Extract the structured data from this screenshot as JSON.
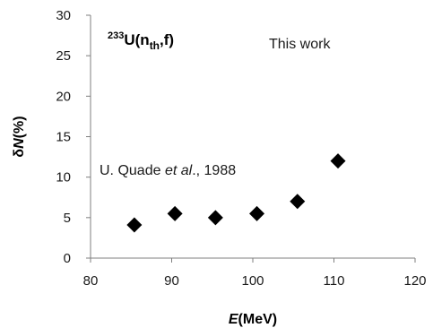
{
  "chart_data": {
    "type": "scatter",
    "title": "",
    "xlabel_italic": "E",
    "xlabel_rest": "(MeV)",
    "ylabel_prefix": "δ",
    "ylabel_italic": "N",
    "ylabel_rest": "(%)",
    "xlim": [
      80,
      120
    ],
    "ylim": [
      0,
      30
    ],
    "xticks": [
      "80",
      "90",
      "100",
      "110",
      "120"
    ],
    "yticks": [
      "0",
      "5",
      "10",
      "15",
      "20",
      "25",
      "30"
    ],
    "grid": false,
    "legend": "none",
    "marker": "diamond",
    "marker_color": "#000000",
    "series": [
      {
        "points": [
          {
            "x": 85.4,
            "y": 4.1
          },
          {
            "x": 90.4,
            "y": 5.5
          },
          {
            "x": 95.4,
            "y": 5.0
          },
          {
            "x": 100.5,
            "y": 5.5
          },
          {
            "x": 105.5,
            "y": 7.0
          },
          {
            "x": 110.5,
            "y": 12.0
          }
        ]
      }
    ],
    "annotations": {
      "nuclide_mass": "233",
      "nuclide_sym": "U(n",
      "nuclide_sub": "th",
      "nuclide_end": ",f)",
      "this_work": "This work",
      "ref_prefix": "U. Quade ",
      "ref_italic": "et al",
      "ref_suffix": "., 1988"
    }
  }
}
